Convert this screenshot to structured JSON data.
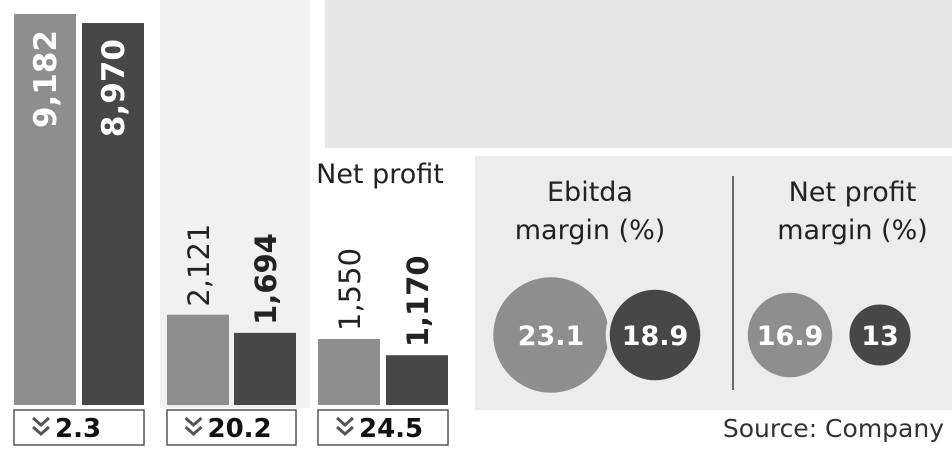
{
  "chart_data": [
    {
      "type": "bar",
      "values": [
        9182,
        8970
      ],
      "value_labels": [
        "9,182",
        "8,970"
      ],
      "colors": [
        "#8e8e8e",
        "#474747"
      ],
      "change": 2.3
    },
    {
      "type": "bar",
      "values": [
        2121,
        1694
      ],
      "value_labels": [
        "2,121",
        "1,694"
      ],
      "colors": [
        "#8e8e8e",
        "#474747"
      ],
      "change": 20.2
    },
    {
      "type": "bar",
      "title": "Net profit",
      "values": [
        1550,
        1170
      ],
      "value_labels": [
        "1,550",
        "1,170"
      ],
      "colors": [
        "#8e8e8e",
        "#474747"
      ],
      "change": 24.5
    },
    {
      "type": "bubble",
      "title": "Ebitda margin (%)",
      "values": [
        23.1,
        18.9
      ],
      "colors": [
        "#8e8e8e",
        "#474747"
      ]
    },
    {
      "type": "bubble",
      "title": "Net profit margin (%)",
      "values": [
        16.9,
        13
      ],
      "colors": [
        "#8e8e8e",
        "#474747"
      ]
    }
  ],
  "source": "Source: Company"
}
